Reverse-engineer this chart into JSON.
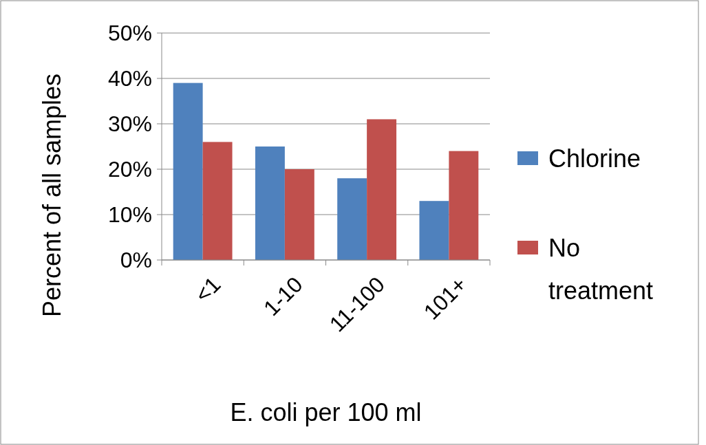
{
  "chart_data": {
    "type": "bar",
    "xlabel": "E. coli per 100 ml",
    "ylabel": "Percent of all samples",
    "categories": [
      "<1",
      "1-10",
      "11-100",
      "101+"
    ],
    "series": [
      {
        "name": "Chlorine",
        "color": "#4f81bd",
        "values": [
          39,
          25,
          18,
          13
        ]
      },
      {
        "name": "No treatment",
        "color": "#c0504d",
        "values": [
          26,
          20,
          31,
          24
        ]
      }
    ],
    "ylim": [
      0,
      50
    ],
    "yticks": [
      {
        "value": 0,
        "label": "0%"
      },
      {
        "value": 10,
        "label": "10%"
      },
      {
        "value": 20,
        "label": "20%"
      },
      {
        "value": 30,
        "label": "30%"
      },
      {
        "value": 40,
        "label": "40%"
      },
      {
        "value": 50,
        "label": "50%"
      }
    ],
    "grid": "y",
    "legend": "right"
  }
}
